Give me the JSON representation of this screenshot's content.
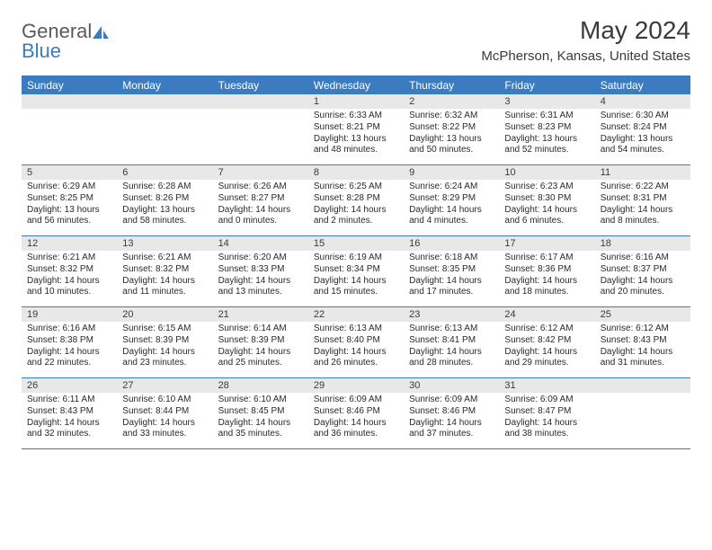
{
  "brand": {
    "name1": "General",
    "name2": "Blue",
    "logo_color": "#3b7bbf",
    "text_color": "#5a5a5a"
  },
  "title": "May 2024",
  "location": "McPherson, Kansas, United States",
  "header_bg": "#3b7bbf",
  "header_fg": "#ffffff",
  "daynum_bg": "#e8e8e8",
  "border_color": "#3b7bbf",
  "day_names": [
    "Sunday",
    "Monday",
    "Tuesday",
    "Wednesday",
    "Thursday",
    "Friday",
    "Saturday"
  ],
  "weeks": [
    [
      null,
      null,
      null,
      {
        "n": "1",
        "sr": "Sunrise: 6:33 AM",
        "ss": "Sunset: 8:21 PM",
        "dl1": "Daylight: 13 hours",
        "dl2": "and 48 minutes."
      },
      {
        "n": "2",
        "sr": "Sunrise: 6:32 AM",
        "ss": "Sunset: 8:22 PM",
        "dl1": "Daylight: 13 hours",
        "dl2": "and 50 minutes."
      },
      {
        "n": "3",
        "sr": "Sunrise: 6:31 AM",
        "ss": "Sunset: 8:23 PM",
        "dl1": "Daylight: 13 hours",
        "dl2": "and 52 minutes."
      },
      {
        "n": "4",
        "sr": "Sunrise: 6:30 AM",
        "ss": "Sunset: 8:24 PM",
        "dl1": "Daylight: 13 hours",
        "dl2": "and 54 minutes."
      }
    ],
    [
      {
        "n": "5",
        "sr": "Sunrise: 6:29 AM",
        "ss": "Sunset: 8:25 PM",
        "dl1": "Daylight: 13 hours",
        "dl2": "and 56 minutes."
      },
      {
        "n": "6",
        "sr": "Sunrise: 6:28 AM",
        "ss": "Sunset: 8:26 PM",
        "dl1": "Daylight: 13 hours",
        "dl2": "and 58 minutes."
      },
      {
        "n": "7",
        "sr": "Sunrise: 6:26 AM",
        "ss": "Sunset: 8:27 PM",
        "dl1": "Daylight: 14 hours",
        "dl2": "and 0 minutes."
      },
      {
        "n": "8",
        "sr": "Sunrise: 6:25 AM",
        "ss": "Sunset: 8:28 PM",
        "dl1": "Daylight: 14 hours",
        "dl2": "and 2 minutes."
      },
      {
        "n": "9",
        "sr": "Sunrise: 6:24 AM",
        "ss": "Sunset: 8:29 PM",
        "dl1": "Daylight: 14 hours",
        "dl2": "and 4 minutes."
      },
      {
        "n": "10",
        "sr": "Sunrise: 6:23 AM",
        "ss": "Sunset: 8:30 PM",
        "dl1": "Daylight: 14 hours",
        "dl2": "and 6 minutes."
      },
      {
        "n": "11",
        "sr": "Sunrise: 6:22 AM",
        "ss": "Sunset: 8:31 PM",
        "dl1": "Daylight: 14 hours",
        "dl2": "and 8 minutes."
      }
    ],
    [
      {
        "n": "12",
        "sr": "Sunrise: 6:21 AM",
        "ss": "Sunset: 8:32 PM",
        "dl1": "Daylight: 14 hours",
        "dl2": "and 10 minutes."
      },
      {
        "n": "13",
        "sr": "Sunrise: 6:21 AM",
        "ss": "Sunset: 8:32 PM",
        "dl1": "Daylight: 14 hours",
        "dl2": "and 11 minutes."
      },
      {
        "n": "14",
        "sr": "Sunrise: 6:20 AM",
        "ss": "Sunset: 8:33 PM",
        "dl1": "Daylight: 14 hours",
        "dl2": "and 13 minutes."
      },
      {
        "n": "15",
        "sr": "Sunrise: 6:19 AM",
        "ss": "Sunset: 8:34 PM",
        "dl1": "Daylight: 14 hours",
        "dl2": "and 15 minutes."
      },
      {
        "n": "16",
        "sr": "Sunrise: 6:18 AM",
        "ss": "Sunset: 8:35 PM",
        "dl1": "Daylight: 14 hours",
        "dl2": "and 17 minutes."
      },
      {
        "n": "17",
        "sr": "Sunrise: 6:17 AM",
        "ss": "Sunset: 8:36 PM",
        "dl1": "Daylight: 14 hours",
        "dl2": "and 18 minutes."
      },
      {
        "n": "18",
        "sr": "Sunrise: 6:16 AM",
        "ss": "Sunset: 8:37 PM",
        "dl1": "Daylight: 14 hours",
        "dl2": "and 20 minutes."
      }
    ],
    [
      {
        "n": "19",
        "sr": "Sunrise: 6:16 AM",
        "ss": "Sunset: 8:38 PM",
        "dl1": "Daylight: 14 hours",
        "dl2": "and 22 minutes."
      },
      {
        "n": "20",
        "sr": "Sunrise: 6:15 AM",
        "ss": "Sunset: 8:39 PM",
        "dl1": "Daylight: 14 hours",
        "dl2": "and 23 minutes."
      },
      {
        "n": "21",
        "sr": "Sunrise: 6:14 AM",
        "ss": "Sunset: 8:39 PM",
        "dl1": "Daylight: 14 hours",
        "dl2": "and 25 minutes."
      },
      {
        "n": "22",
        "sr": "Sunrise: 6:13 AM",
        "ss": "Sunset: 8:40 PM",
        "dl1": "Daylight: 14 hours",
        "dl2": "and 26 minutes."
      },
      {
        "n": "23",
        "sr": "Sunrise: 6:13 AM",
        "ss": "Sunset: 8:41 PM",
        "dl1": "Daylight: 14 hours",
        "dl2": "and 28 minutes."
      },
      {
        "n": "24",
        "sr": "Sunrise: 6:12 AM",
        "ss": "Sunset: 8:42 PM",
        "dl1": "Daylight: 14 hours",
        "dl2": "and 29 minutes."
      },
      {
        "n": "25",
        "sr": "Sunrise: 6:12 AM",
        "ss": "Sunset: 8:43 PM",
        "dl1": "Daylight: 14 hours",
        "dl2": "and 31 minutes."
      }
    ],
    [
      {
        "n": "26",
        "sr": "Sunrise: 6:11 AM",
        "ss": "Sunset: 8:43 PM",
        "dl1": "Daylight: 14 hours",
        "dl2": "and 32 minutes."
      },
      {
        "n": "27",
        "sr": "Sunrise: 6:10 AM",
        "ss": "Sunset: 8:44 PM",
        "dl1": "Daylight: 14 hours",
        "dl2": "and 33 minutes."
      },
      {
        "n": "28",
        "sr": "Sunrise: 6:10 AM",
        "ss": "Sunset: 8:45 PM",
        "dl1": "Daylight: 14 hours",
        "dl2": "and 35 minutes."
      },
      {
        "n": "29",
        "sr": "Sunrise: 6:09 AM",
        "ss": "Sunset: 8:46 PM",
        "dl1": "Daylight: 14 hours",
        "dl2": "and 36 minutes."
      },
      {
        "n": "30",
        "sr": "Sunrise: 6:09 AM",
        "ss": "Sunset: 8:46 PM",
        "dl1": "Daylight: 14 hours",
        "dl2": "and 37 minutes."
      },
      {
        "n": "31",
        "sr": "Sunrise: 6:09 AM",
        "ss": "Sunset: 8:47 PM",
        "dl1": "Daylight: 14 hours",
        "dl2": "and 38 minutes."
      },
      null
    ]
  ]
}
